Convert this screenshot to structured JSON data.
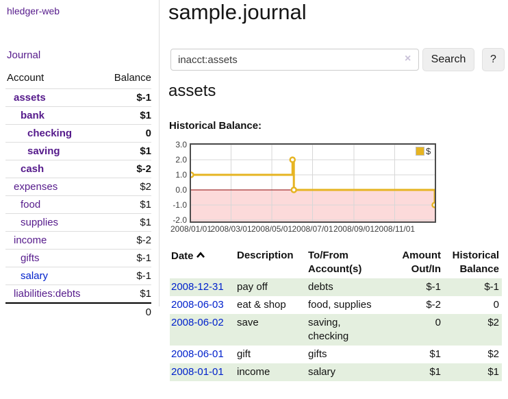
{
  "app": {
    "brand": "hledger-web",
    "nav_journal": "Journal"
  },
  "colors": {
    "link_purple": "#551a8b",
    "link_blue": "#0021cc",
    "negative_strong": "#8b0000",
    "negative_dim": "#c08080",
    "row_green": "#e4efdf",
    "chart_line_gold": "#e6b422",
    "chart_negative_fill": "#fcdada",
    "chart_zero_line": "#8b0000"
  },
  "sidebar": {
    "header": {
      "account": "Account",
      "balance": "Balance"
    },
    "accounts": [
      {
        "name": "assets",
        "depth": 1,
        "balance": "$-1",
        "bold": true,
        "link": "purple",
        "neg": "strong"
      },
      {
        "name": "bank",
        "depth": 2,
        "balance": "$1",
        "bold": true,
        "link": "purple",
        "neg": "none"
      },
      {
        "name": "checking",
        "depth": 3,
        "balance": "0",
        "bold": true,
        "link": "purple",
        "neg": "none"
      },
      {
        "name": "saving",
        "depth": 3,
        "balance": "$1",
        "bold": true,
        "link": "purple",
        "neg": "none"
      },
      {
        "name": "cash",
        "depth": 2,
        "balance": "$-2",
        "bold": true,
        "link": "purple",
        "neg": "strong"
      },
      {
        "name": "expenses",
        "depth": 1,
        "balance": "$2",
        "bold": false,
        "link": "purple",
        "neg": "none"
      },
      {
        "name": "food",
        "depth": 2,
        "balance": "$1",
        "bold": false,
        "link": "purple",
        "neg": "none"
      },
      {
        "name": "supplies",
        "depth": 2,
        "balance": "$1",
        "bold": false,
        "link": "purple",
        "neg": "none"
      },
      {
        "name": "income",
        "depth": 1,
        "balance": "$-2",
        "bold": false,
        "link": "purple",
        "neg": "dim"
      },
      {
        "name": "gifts",
        "depth": 2,
        "balance": "$-1",
        "bold": false,
        "link": "purple",
        "neg": "dim"
      },
      {
        "name": "salary",
        "depth": 2,
        "balance": "$-1",
        "bold": false,
        "link": "blue",
        "neg": "dim"
      },
      {
        "name": "liabilities:debts",
        "depth": 1,
        "balance": "$1",
        "bold": false,
        "link": "purple",
        "neg": "none"
      }
    ],
    "total": "0"
  },
  "header": {
    "title": "sample.journal"
  },
  "search": {
    "value": "inacct:assets",
    "clear_icon": "×",
    "button": "Search",
    "help": "?"
  },
  "account_page": {
    "title": "assets",
    "chart_label": "Historical Balance:"
  },
  "chart_data": {
    "type": "line",
    "step": true,
    "title": "Historical Balance",
    "series": [
      {
        "name": "$",
        "color": "#e6b422",
        "points": [
          [
            "2008-01-01",
            1
          ],
          [
            "2008-06-01",
            2
          ],
          [
            "2008-06-03",
            0
          ],
          [
            "2008-12-31",
            -1
          ]
        ]
      }
    ],
    "xrange": [
      "2008-01-01",
      "2008-12-31"
    ],
    "x_ticks": [
      "2008/01/01",
      "2008/03/01",
      "2008/05/01",
      "2008/07/01",
      "2008/09/01",
      "2008/11/01"
    ],
    "y_ticks": [
      "3.0",
      "2.0",
      "1.0",
      "0.0",
      "-1.0",
      "-2.0"
    ],
    "ylim": [
      -2,
      3
    ],
    "grid": true,
    "legend_position": "top-right",
    "negative_fill": "#fcdada",
    "zero_line_color": "#8b0000",
    "grid_color": "#d7d7d7"
  },
  "register": {
    "headers": {
      "date": "Date",
      "description": "Description",
      "accounts": "To/From\nAccount(s)",
      "amount": "Amount\nOut/In",
      "balance": "Historical\nBalance"
    },
    "sort_icon": "chevron-up",
    "rows": [
      {
        "date": "2008-12-31",
        "description": "pay off",
        "accounts": "debts",
        "amount": "$-1",
        "amount_neg": true,
        "balance": "$-1",
        "balance_neg": true
      },
      {
        "date": "2008-06-03",
        "description": "eat & shop",
        "accounts": "food, supplies",
        "amount": "$-2",
        "amount_neg": true,
        "balance": "0",
        "balance_neg": false
      },
      {
        "date": "2008-06-02",
        "description": "save",
        "accounts": "saving,\nchecking",
        "amount": "0",
        "amount_neg": false,
        "balance": "$2",
        "balance_neg": false
      },
      {
        "date": "2008-06-01",
        "description": "gift",
        "accounts": "gifts",
        "amount": "$1",
        "amount_neg": false,
        "balance": "$2",
        "balance_neg": false
      },
      {
        "date": "2008-01-01",
        "description": "income",
        "accounts": "salary",
        "amount": "$1",
        "amount_neg": false,
        "balance": "$1",
        "balance_neg": false
      }
    ]
  }
}
